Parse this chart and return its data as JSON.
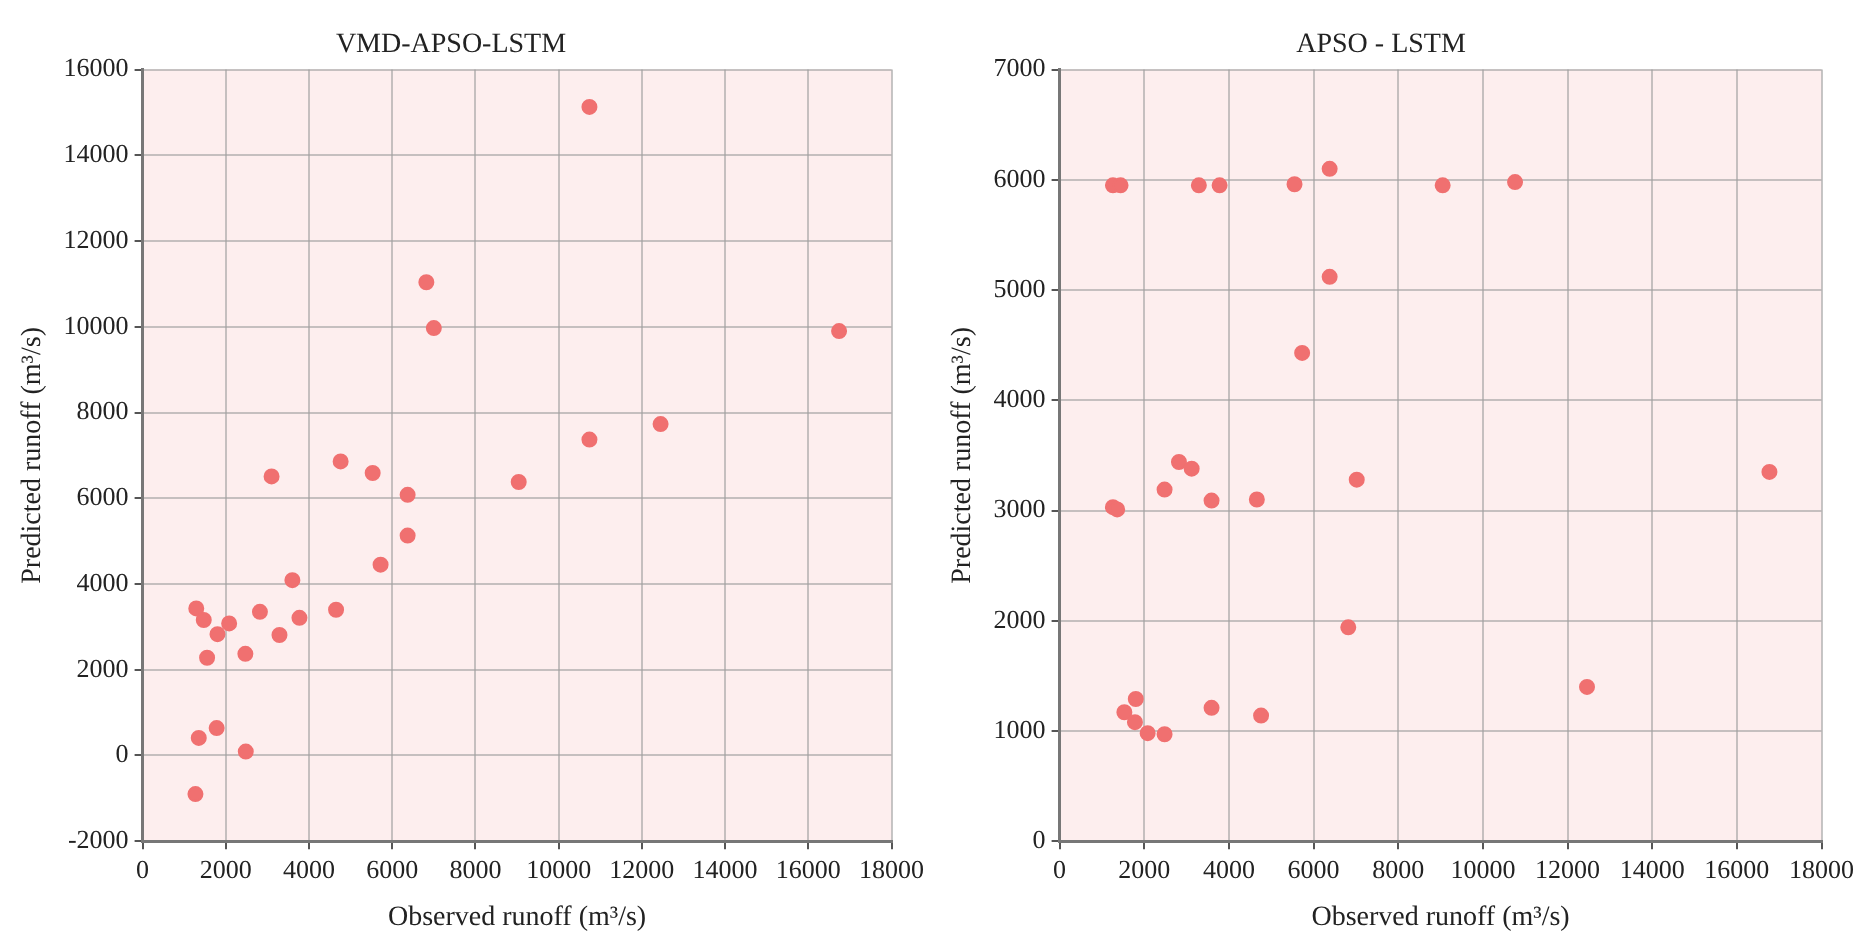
{
  "chart_data": [
    {
      "type": "scatter",
      "title": "VMD-APSO-LSTM",
      "xlabel": "Observed runoff (m³/s)",
      "ylabel": "Predicted runoff (m³/s)",
      "xlim": [
        0,
        18000
      ],
      "xticks": [
        0,
        2000,
        4000,
        6000,
        8000,
        10000,
        12000,
        14000,
        16000,
        18000
      ],
      "ylim": [
        -2000,
        16000
      ],
      "yticks": [
        -2000,
        0,
        2000,
        4000,
        6000,
        8000,
        10000,
        12000,
        14000,
        16000
      ],
      "grid": true,
      "legend": false,
      "marker": "circle",
      "series": [
        {
          "color": "#f07070",
          "x": [
            10740,
            6820,
            7000,
            16740,
            10740,
            12450,
            3100,
            4760,
            5530,
            6370,
            9040,
            6370,
            5720,
            3600,
            1290,
            1470,
            1800,
            2080,
            2820,
            3290,
            3770,
            4650,
            1550,
            2470,
            1780,
            1350,
            2480,
            1270
          ],
          "values": [
            15130,
            11040,
            9970,
            9900,
            7370,
            7730,
            6510,
            6860,
            6590,
            6080,
            6380,
            5130,
            4450,
            4090,
            3430,
            3160,
            2830,
            3080,
            3350,
            2810,
            3210,
            3400,
            2280,
            2370,
            640,
            410,
            90,
            -900
          ]
        }
      ]
    },
    {
      "type": "scatter",
      "title": "APSO - LSTM",
      "xlabel": "Observed runoff (m³/s)",
      "ylabel": "Predicted runoff (m³/s)",
      "xlim": [
        0,
        18000
      ],
      "xticks": [
        0,
        2000,
        4000,
        6000,
        8000,
        10000,
        12000,
        14000,
        16000,
        18000
      ],
      "ylim": [
        0,
        7000
      ],
      "yticks": [
        0,
        1000,
        2000,
        3000,
        4000,
        5000,
        6000,
        7000
      ],
      "grid": true,
      "legend": false,
      "marker": "circle",
      "series": [
        {
          "color": "#f07070",
          "x": [
            1260,
            1440,
            3290,
            3780,
            5550,
            6380,
            9050,
            10760,
            6380,
            5730,
            2820,
            3120,
            2480,
            1260,
            1360,
            3590,
            4660,
            7020,
            16770,
            6820,
            12460,
            1530,
            1800,
            1780,
            2080,
            2480,
            3590,
            4760
          ],
          "values": [
            5950,
            5950,
            5950,
            5950,
            5960,
            6100,
            5950,
            5980,
            5120,
            4430,
            3440,
            3380,
            3190,
            3030,
            3010,
            3090,
            3100,
            3280,
            3350,
            1940,
            1400,
            1170,
            1290,
            1080,
            980,
            970,
            1210,
            1140
          ]
        }
      ]
    }
  ]
}
